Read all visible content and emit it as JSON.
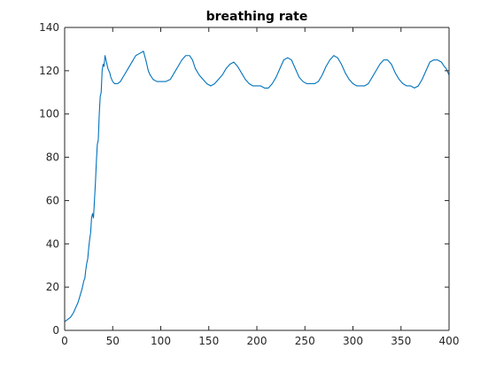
{
  "chart_data": {
    "type": "line",
    "title": "breathing rate",
    "xlabel": "",
    "ylabel": "",
    "xlim": [
      0,
      400
    ],
    "ylim": [
      0,
      140
    ],
    "xticks": [
      0,
      50,
      100,
      150,
      200,
      250,
      300,
      350,
      400
    ],
    "yticks": [
      0,
      20,
      40,
      60,
      80,
      100,
      120,
      140
    ],
    "grid": false,
    "legend": "none",
    "colors": {
      "line": "#0072BD",
      "axes": "#262626",
      "background": "#ffffff"
    },
    "series": [
      {
        "x": [
          0,
          3,
          6,
          9,
          12,
          14,
          16,
          18,
          20,
          21,
          22,
          23,
          24,
          25,
          26,
          27,
          28,
          29,
          30,
          31,
          32,
          33,
          34,
          35,
          36,
          37,
          38,
          39,
          40,
          41,
          42,
          43,
          44,
          45,
          46,
          47,
          48,
          50,
          52,
          55,
          58,
          62,
          66,
          70,
          74,
          78,
          82,
          85,
          87,
          89,
          92,
          96,
          100,
          105,
          110,
          114,
          118,
          122,
          126,
          130,
          133,
          136,
          140,
          144,
          148,
          152,
          156,
          160,
          164,
          168,
          172,
          176,
          180,
          184,
          188,
          192,
          196,
          200,
          204,
          208,
          212,
          216,
          220,
          224,
          228,
          232,
          236,
          240,
          244,
          248,
          252,
          256,
          260,
          264,
          268,
          272,
          276,
          280,
          284,
          288,
          292,
          296,
          300,
          304,
          308,
          312,
          316,
          320,
          324,
          328,
          332,
          336,
          340,
          344,
          348,
          352,
          356,
          360,
          364,
          368,
          372,
          376,
          380,
          384,
          388,
          392,
          395,
          397,
          399,
          400
        ],
        "y": [
          4,
          5,
          6,
          8,
          11,
          13,
          16,
          19,
          23,
          24,
          28,
          31,
          33,
          38,
          42,
          45,
          52,
          54,
          52,
          60,
          68,
          78,
          86,
          88,
          100,
          108,
          110,
          120,
          123,
          122,
          127,
          125,
          123,
          121,
          120,
          119,
          117,
          115,
          114,
          114,
          115,
          118,
          121,
          124,
          127,
          128,
          129,
          124,
          120,
          118,
          116,
          115,
          115,
          115,
          116,
          119,
          122,
          125,
          127,
          127,
          125,
          121,
          118,
          116,
          114,
          113,
          114,
          116,
          118,
          121,
          123,
          124,
          122,
          119,
          116,
          114,
          113,
          113,
          113,
          112,
          112,
          114,
          117,
          121,
          125,
          126,
          125,
          121,
          117,
          115,
          114,
          114,
          114,
          115,
          118,
          122,
          125,
          127,
          126,
          123,
          119,
          116,
          114,
          113,
          113,
          113,
          114,
          117,
          120,
          123,
          125,
          125,
          123,
          119,
          116,
          114,
          113,
          113,
          112,
          113,
          116,
          120,
          124,
          125,
          125,
          124,
          122,
          121,
          119,
          118
        ],
        "color": "#0072BD"
      }
    ]
  }
}
